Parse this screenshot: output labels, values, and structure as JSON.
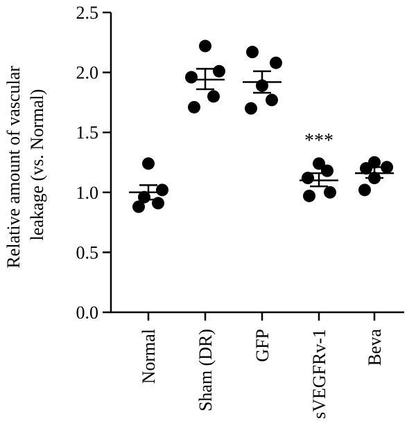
{
  "chart_data": {
    "type": "scatter",
    "title": "",
    "ylabel_lines": [
      "Relative amount of vascular",
      "leakage (vs. Normal)"
    ],
    "xlabel": "",
    "ylim": [
      0,
      2.5
    ],
    "yticks": [
      0.0,
      0.5,
      1.0,
      1.5,
      2.0,
      2.5
    ],
    "ytick_labels": [
      "0.0",
      "0.5",
      "1.0",
      "1.5",
      "2.0",
      "2.5"
    ],
    "categories": [
      "Normal",
      "Sham (DR)",
      "GFP",
      "sVEGFRv-1",
      "Beva"
    ],
    "groups": [
      {
        "category": "Normal",
        "points": [
          0.88,
          0.91,
          0.96,
          1.02,
          1.24
        ],
        "mean": 1.0,
        "sem_low": 0.94,
        "sem_high": 1.06,
        "annotation": ""
      },
      {
        "category": "Sham (DR)",
        "points": [
          1.71,
          1.8,
          1.96,
          2.01,
          2.22
        ],
        "mean": 1.94,
        "sem_low": 1.86,
        "sem_high": 2.03,
        "annotation": ""
      },
      {
        "category": "GFP",
        "points": [
          1.7,
          1.77,
          1.89,
          2.08,
          2.17
        ],
        "mean": 1.92,
        "sem_low": 1.83,
        "sem_high": 2.01,
        "annotation": ""
      },
      {
        "category": "sVEGFRv-1",
        "points": [
          0.97,
          1.0,
          1.12,
          1.18,
          1.24
        ],
        "mean": 1.1,
        "sem_low": 1.05,
        "sem_high": 1.16,
        "annotation": "***"
      },
      {
        "category": "Beva",
        "points": [
          1.02,
          1.12,
          1.2,
          1.21,
          1.25
        ],
        "mean": 1.16,
        "sem_low": 1.12,
        "sem_high": 1.21,
        "annotation": ""
      }
    ],
    "marker_color": "#000000",
    "grid": false,
    "legend": "none"
  }
}
